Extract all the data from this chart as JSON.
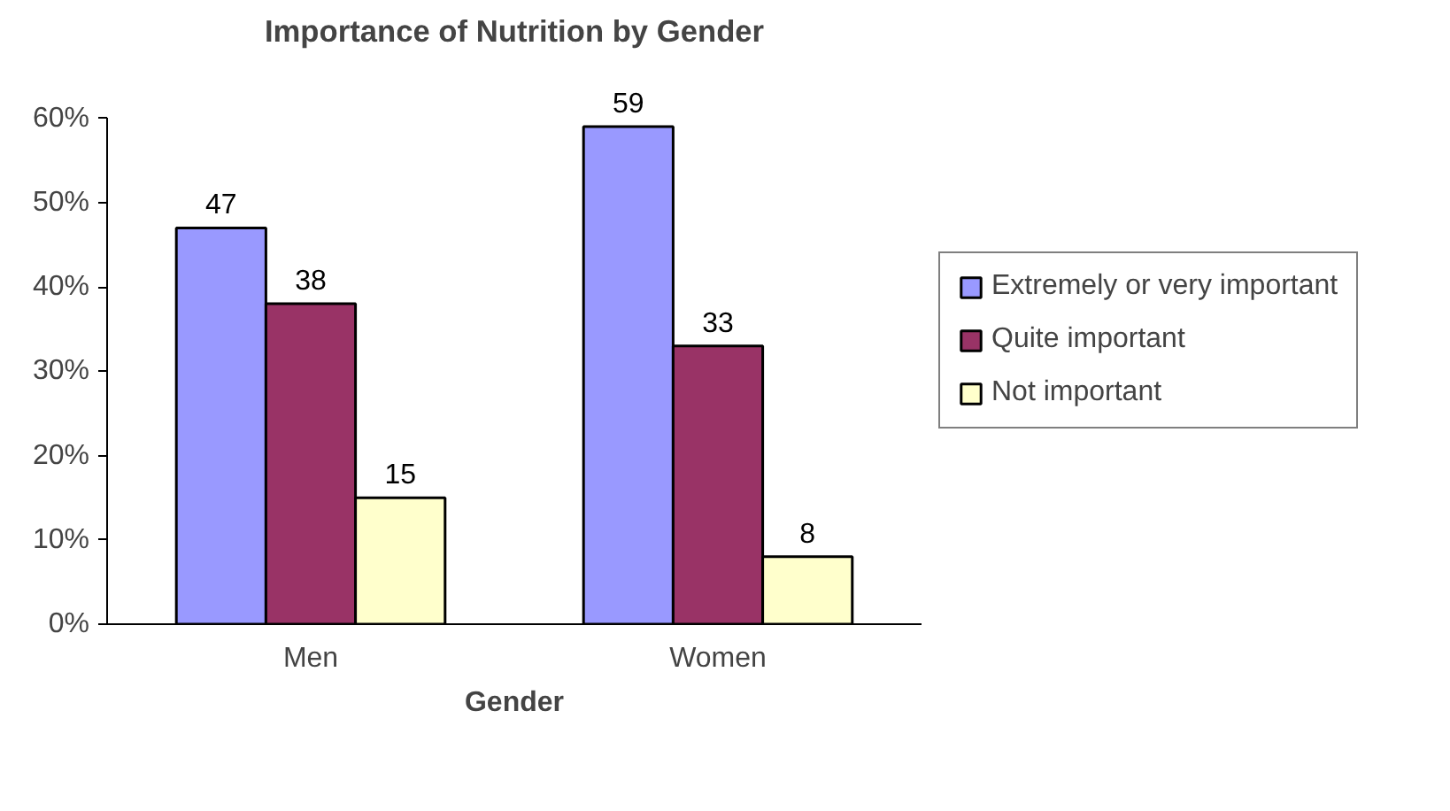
{
  "chart_data": {
    "type": "bar",
    "title": "Importance of Nutrition by Gender",
    "xlabel": "Gender",
    "categories": [
      "Men",
      "Women"
    ],
    "series": [
      {
        "name": "Extremely or very important",
        "color": "#9999ff",
        "values": [
          47,
          59
        ]
      },
      {
        "name": "Quite important",
        "color": "#993366",
        "values": [
          38,
          33
        ]
      },
      {
        "name": "Not important",
        "color": "#ffffcc",
        "values": [
          15,
          8
        ]
      }
    ],
    "ylim": [
      0,
      60
    ],
    "yticks": [
      {
        "value": 0,
        "label": "0%"
      },
      {
        "value": 10,
        "label": "10%"
      },
      {
        "value": 20,
        "label": "20%"
      },
      {
        "value": 30,
        "label": "30%"
      },
      {
        "value": 40,
        "label": "40%"
      },
      {
        "value": 50,
        "label": "50%"
      },
      {
        "value": 60,
        "label": "60%"
      }
    ],
    "data_labels": true,
    "legend": "right"
  }
}
